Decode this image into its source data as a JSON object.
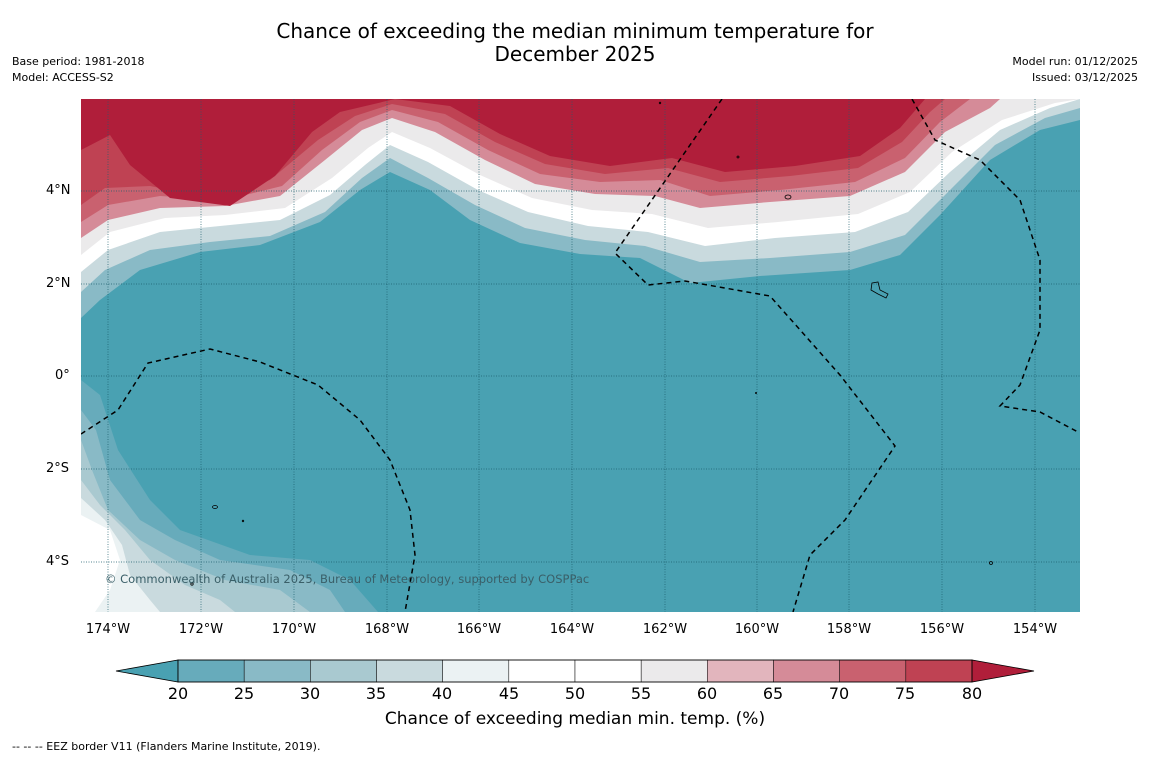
{
  "title": {
    "line1": "Chance of exceeding the median minimum temperature for",
    "line2": "December 2025"
  },
  "meta_left": {
    "base_period": "Base period: 1981-2018",
    "model": "Model: ACCESS-S2"
  },
  "meta_right": {
    "model_run": "Model run: 01/12/2025",
    "issued": "Issued: 03/12/2025"
  },
  "map": {
    "lat_labels": [
      "4°N",
      "2°N",
      "0°",
      "2°S",
      "4°S"
    ],
    "lon_labels": [
      "174°W",
      "172°W",
      "170°W",
      "168°W",
      "166°W",
      "164°W",
      "162°W",
      "160°W",
      "158°W",
      "156°W",
      "154°W"
    ],
    "copyright": "© Commonwealth of Australia 2025, Bureau of Meteorology, supported by COSPPac",
    "colors": {
      "low": "#49a1b2",
      "high": "#b01e3a",
      "grid": "#1c5e6c",
      "eez": "#000000"
    }
  },
  "colorbar": {
    "title": "Chance of exceeding median min. temp. (%)",
    "ticks": [
      "20",
      "25",
      "30",
      "35",
      "40",
      "45",
      "50",
      "55",
      "60",
      "65",
      "70",
      "75",
      "80"
    ],
    "colors": [
      "#49a1b2",
      "#67abbb",
      "#89bac6",
      "#a9c9d0",
      "#c9dade",
      "#ebf2f3",
      "#ffffff",
      "#ffffff",
      "#ebeaeb",
      "#e2b5bd",
      "#d58b98",
      "#c9616f",
      "#bf4253",
      "#b01e3a"
    ]
  },
  "legend_note": "--  --  -- EEZ border V11 (Flanders Marine Institute, 2019)."
}
